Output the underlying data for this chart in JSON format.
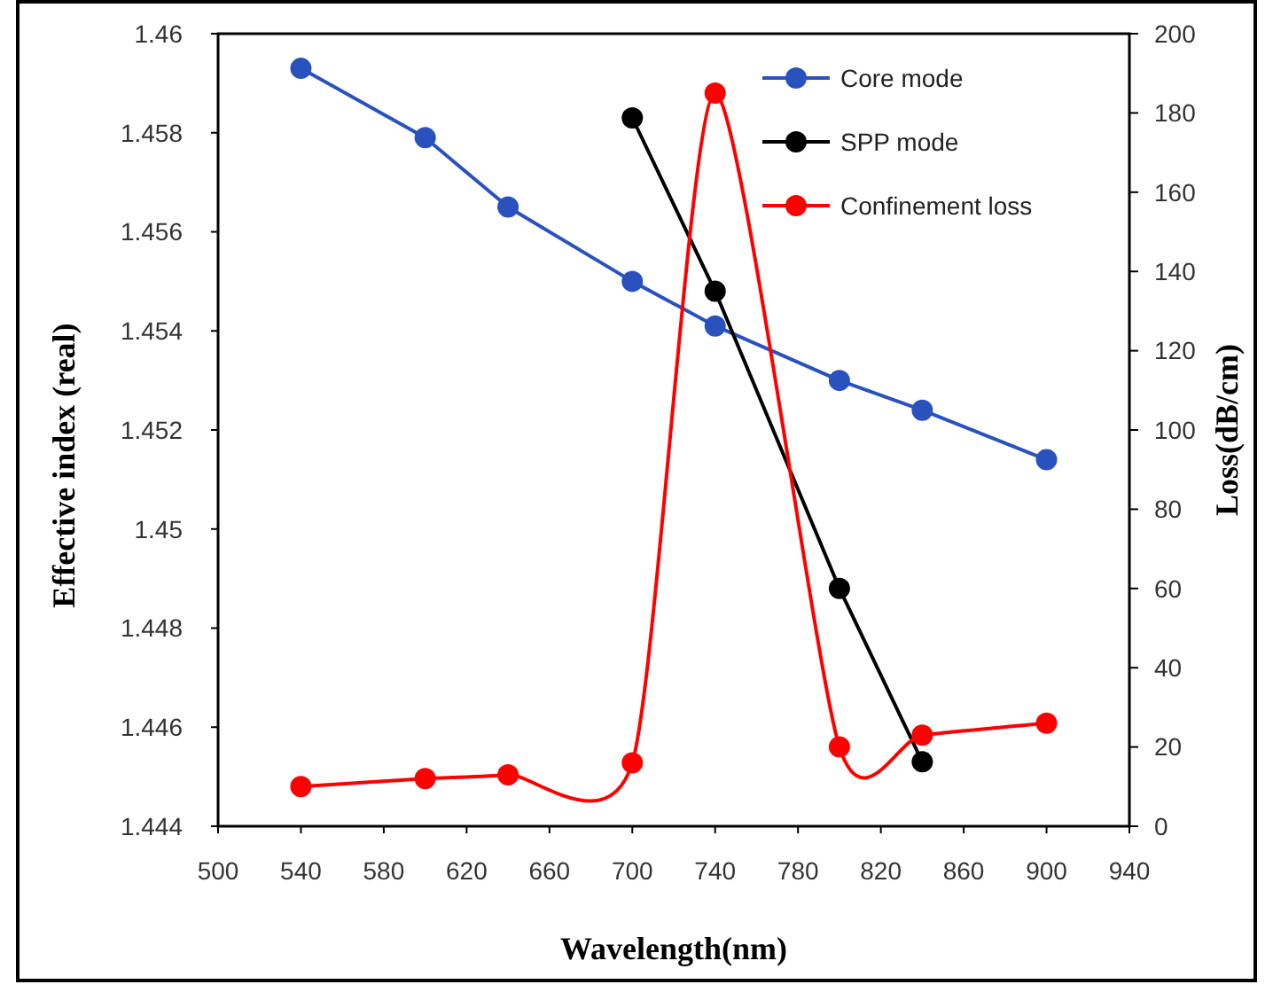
{
  "chart_data": {
    "type": "line",
    "xlabel": "Wavelength(nm)",
    "ylabel": "Effective index (real)",
    "y2label": "Loss(dB/cm)",
    "xlim": [
      500,
      940
    ],
    "xticks": [
      500,
      540,
      580,
      620,
      660,
      700,
      740,
      780,
      820,
      860,
      900,
      940
    ],
    "ylim": [
      1.444,
      1.46
    ],
    "yticks": [
      {
        "value": 1.444,
        "label": "1.444"
      },
      {
        "value": 1.446,
        "label": "1.446"
      },
      {
        "value": 1.448,
        "label": "1.448"
      },
      {
        "value": 1.45,
        "label": "1.45"
      },
      {
        "value": 1.452,
        "label": "1.452"
      },
      {
        "value": 1.454,
        "label": "1.454"
      },
      {
        "value": 1.456,
        "label": "1.456"
      },
      {
        "value": 1.458,
        "label": "1.458"
      },
      {
        "value": 1.46,
        "label": "1.46"
      }
    ],
    "y2lim": [
      0,
      200
    ],
    "y2ticks": [
      0,
      20,
      40,
      60,
      80,
      100,
      120,
      140,
      160,
      180,
      200
    ],
    "legend": "top right",
    "marker": "circle",
    "grid": false,
    "series": [
      {
        "name": "Core mode",
        "color": "#2a52be",
        "x": [
          540,
          600,
          640,
          700,
          740,
          800,
          840,
          900
        ],
        "values": [
          1.4593,
          1.4579,
          1.4565,
          1.455,
          1.4541,
          1.453,
          1.4524,
          1.4514
        ]
      },
      {
        "name": "SPP mode",
        "color": "#000000",
        "x": [
          700,
          740,
          800,
          840
        ],
        "values": [
          1.4583,
          1.4548,
          1.4488,
          1.4453
        ]
      },
      {
        "name": "Confinement loss",
        "color": "#ff0000",
        "axis": "y2",
        "x": [
          540,
          600,
          640,
          700,
          740,
          800,
          840,
          900
        ],
        "values": [
          10,
          12,
          13,
          16,
          185,
          20,
          23,
          26
        ]
      }
    ]
  }
}
